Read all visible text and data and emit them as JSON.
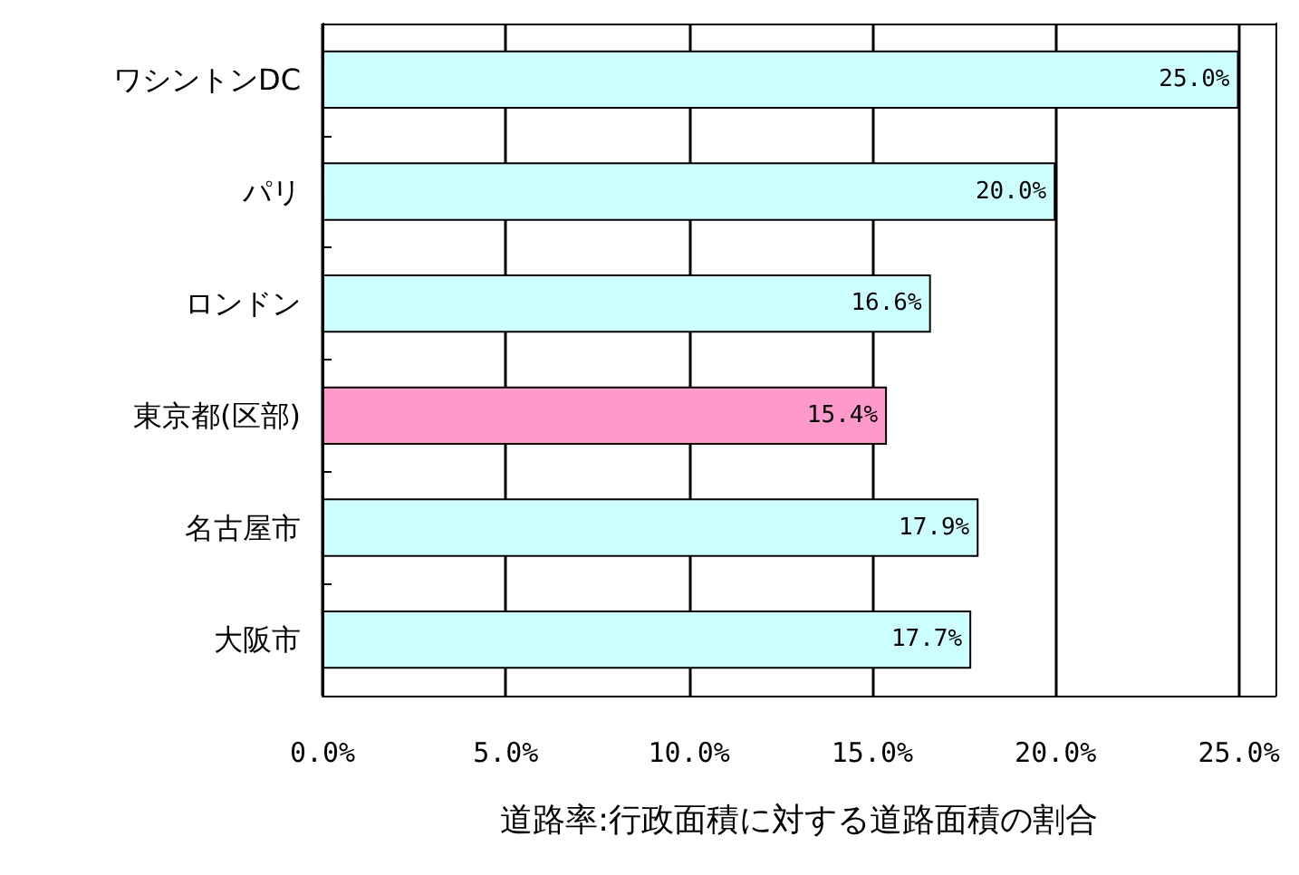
{
  "chart_data": {
    "type": "bar",
    "orientation": "horizontal",
    "xlabel": "道路率:行政面積に対する道路面積の割合",
    "categories": [
      "ワシントンDC",
      "パリ",
      "ロンドン",
      "東京都(区部)",
      "名古屋市",
      "大阪市"
    ],
    "values": [
      25.0,
      20.0,
      16.6,
      15.4,
      17.9,
      17.7
    ],
    "colors": [
      "#ccffff",
      "#ccffff",
      "#ccffff",
      "#ff99cc",
      "#ccffff",
      "#ccffff"
    ],
    "value_labels": [
      "25.0%",
      "20.0%",
      "16.6%",
      "15.4%",
      "17.9%",
      "17.7%"
    ],
    "xlim": [
      0,
      26
    ],
    "xticks": [
      {
        "value": 0,
        "label": "0.0%"
      },
      {
        "value": 5,
        "label": "5.0%"
      },
      {
        "value": 10,
        "label": "10.0%"
      },
      {
        "value": 15,
        "label": "15.0%"
      },
      {
        "value": 20,
        "label": "20.0%"
      },
      {
        "value": 25,
        "label": "25.0%"
      }
    ],
    "grid": "x"
  }
}
